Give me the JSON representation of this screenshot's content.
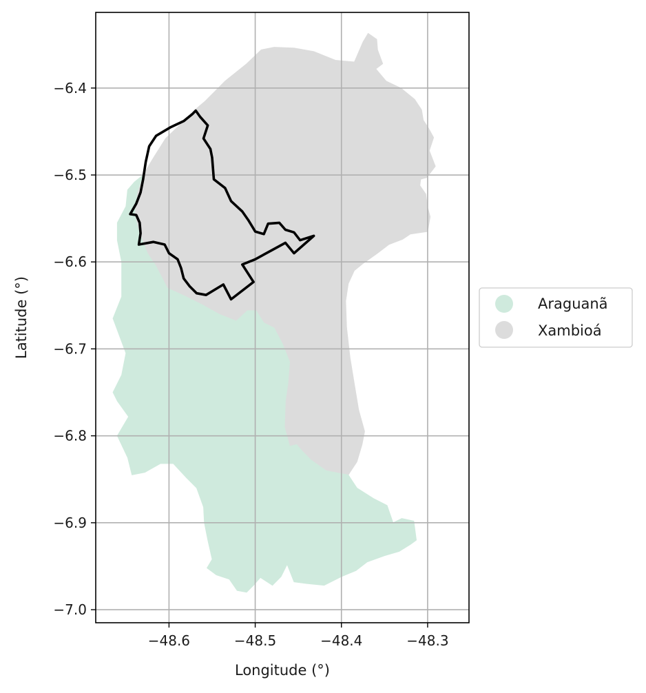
{
  "axes": {
    "xlabel": "Longitude (°)",
    "ylabel": "Latitude (°)",
    "xlim": [
      -48.685,
      -48.252
    ],
    "ylim": [
      -7.015,
      -6.313
    ],
    "xticks": [
      {
        "value": -48.6,
        "label": "−48.6"
      },
      {
        "value": -48.5,
        "label": "−48.5"
      },
      {
        "value": -48.4,
        "label": "−48.4"
      },
      {
        "value": -48.3,
        "label": "−48.3"
      }
    ],
    "yticks": [
      {
        "value": -6.4,
        "label": "−6.4"
      },
      {
        "value": -6.5,
        "label": "−6.5"
      },
      {
        "value": -6.6,
        "label": "−6.6"
      },
      {
        "value": -6.7,
        "label": "−6.7"
      },
      {
        "value": -6.8,
        "label": "−6.8"
      },
      {
        "value": -6.9,
        "label": "−6.9"
      },
      {
        "value": -7.0,
        "label": "−7.0"
      }
    ],
    "grid": true
  },
  "legend": {
    "placement": "right",
    "items": [
      {
        "label": "Araguanã",
        "color": "#cfeadd"
      },
      {
        "label": "Xambioá",
        "color": "#dcdcdc"
      }
    ]
  },
  "regions": [
    {
      "name": "Xambioá",
      "color": "#dcdcdc",
      "coords": [
        [
          -48.558,
          -6.415
        ],
        [
          -48.535,
          -6.392
        ],
        [
          -48.51,
          -6.372
        ],
        [
          -48.493,
          -6.356
        ],
        [
          -48.478,
          -6.353
        ],
        [
          -48.455,
          -6.354
        ],
        [
          -48.432,
          -6.358
        ],
        [
          -48.407,
          -6.368
        ],
        [
          -48.385,
          -6.37
        ],
        [
          -48.375,
          -6.347
        ],
        [
          -48.369,
          -6.337
        ],
        [
          -48.359,
          -6.344
        ],
        [
          -48.358,
          -6.356
        ],
        [
          -48.352,
          -6.372
        ],
        [
          -48.36,
          -6.378
        ],
        [
          -48.348,
          -6.392
        ],
        [
          -48.331,
          -6.4
        ],
        [
          -48.315,
          -6.413
        ],
        [
          -48.307,
          -6.425
        ],
        [
          -48.305,
          -6.437
        ],
        [
          -48.299,
          -6.446
        ],
        [
          -48.293,
          -6.457
        ],
        [
          -48.298,
          -6.472
        ],
        [
          -48.291,
          -6.49
        ],
        [
          -48.301,
          -6.503
        ],
        [
          -48.308,
          -6.505
        ],
        [
          -48.309,
          -6.512
        ],
        [
          -48.302,
          -6.522
        ],
        [
          -48.3,
          -6.537
        ],
        [
          -48.297,
          -6.548
        ],
        [
          -48.3,
          -6.565
        ],
        [
          -48.32,
          -6.568
        ],
        [
          -48.329,
          -6.574
        ],
        [
          -48.345,
          -6.58
        ],
        [
          -48.358,
          -6.59
        ],
        [
          -48.375,
          -6.602
        ],
        [
          -48.385,
          -6.61
        ],
        [
          -48.392,
          -6.625
        ],
        [
          -48.395,
          -6.645
        ],
        [
          -48.394,
          -6.675
        ],
        [
          -48.39,
          -6.71
        ],
        [
          -48.385,
          -6.74
        ],
        [
          -48.38,
          -6.77
        ],
        [
          -48.373,
          -6.795
        ],
        [
          -48.376,
          -6.81
        ],
        [
          -48.382,
          -6.83
        ],
        [
          -48.392,
          -6.845
        ],
        [
          -48.403,
          -6.843
        ],
        [
          -48.418,
          -6.84
        ],
        [
          -48.435,
          -6.828
        ],
        [
          -48.445,
          -6.818
        ],
        [
          -48.452,
          -6.81
        ],
        [
          -48.46,
          -6.812
        ],
        [
          -48.466,
          -6.79
        ],
        [
          -48.465,
          -6.76
        ],
        [
          -48.462,
          -6.74
        ],
        [
          -48.46,
          -6.715
        ],
        [
          -48.468,
          -6.695
        ],
        [
          -48.478,
          -6.676
        ],
        [
          -48.49,
          -6.67
        ],
        [
          -48.499,
          -6.656
        ],
        [
          -48.509,
          -6.656
        ],
        [
          -48.522,
          -6.668
        ],
        [
          -48.542,
          -6.66
        ],
        [
          -48.56,
          -6.65
        ],
        [
          -48.58,
          -6.64
        ],
        [
          -48.602,
          -6.63
        ],
        [
          -48.615,
          -6.605
        ],
        [
          -48.625,
          -6.59
        ],
        [
          -48.635,
          -6.565
        ],
        [
          -48.64,
          -6.545
        ],
        [
          -48.637,
          -6.52
        ],
        [
          -48.63,
          -6.5
        ],
        [
          -48.618,
          -6.48
        ],
        [
          -48.604,
          -6.458
        ],
        [
          -48.585,
          -6.44
        ],
        [
          -48.57,
          -6.425
        ],
        [
          -48.558,
          -6.415
        ]
      ]
    },
    {
      "name": "Araguanã",
      "color": "#cfeadd",
      "coords": [
        [
          -48.63,
          -6.5
        ],
        [
          -48.637,
          -6.52
        ],
        [
          -48.64,
          -6.545
        ],
        [
          -48.635,
          -6.565
        ],
        [
          -48.625,
          -6.59
        ],
        [
          -48.615,
          -6.605
        ],
        [
          -48.602,
          -6.63
        ],
        [
          -48.58,
          -6.64
        ],
        [
          -48.56,
          -6.65
        ],
        [
          -48.542,
          -6.66
        ],
        [
          -48.522,
          -6.668
        ],
        [
          -48.509,
          -6.656
        ],
        [
          -48.499,
          -6.656
        ],
        [
          -48.49,
          -6.67
        ],
        [
          -48.478,
          -6.676
        ],
        [
          -48.468,
          -6.695
        ],
        [
          -48.46,
          -6.715
        ],
        [
          -48.462,
          -6.74
        ],
        [
          -48.465,
          -6.76
        ],
        [
          -48.466,
          -6.79
        ],
        [
          -48.46,
          -6.812
        ],
        [
          -48.452,
          -6.81
        ],
        [
          -48.445,
          -6.818
        ],
        [
          -48.435,
          -6.828
        ],
        [
          -48.418,
          -6.84
        ],
        [
          -48.403,
          -6.843
        ],
        [
          -48.392,
          -6.845
        ],
        [
          -48.382,
          -6.86
        ],
        [
          -48.363,
          -6.872
        ],
        [
          -48.347,
          -6.88
        ],
        [
          -48.34,
          -6.9
        ],
        [
          -48.33,
          -6.895
        ],
        [
          -48.316,
          -6.898
        ],
        [
          -48.313,
          -6.92
        ],
        [
          -48.32,
          -6.925
        ],
        [
          -48.333,
          -6.933
        ],
        [
          -48.35,
          -6.938
        ],
        [
          -48.37,
          -6.945
        ],
        [
          -48.383,
          -6.955
        ],
        [
          -48.4,
          -6.962
        ],
        [
          -48.42,
          -6.972
        ],
        [
          -48.44,
          -6.97
        ],
        [
          -48.455,
          -6.968
        ],
        [
          -48.463,
          -6.948
        ],
        [
          -48.47,
          -6.962
        ],
        [
          -48.48,
          -6.972
        ],
        [
          -48.494,
          -6.963
        ],
        [
          -48.502,
          -6.972
        ],
        [
          -48.51,
          -6.98
        ],
        [
          -48.521,
          -6.978
        ],
        [
          -48.53,
          -6.965
        ],
        [
          -48.545,
          -6.96
        ],
        [
          -48.556,
          -6.952
        ],
        [
          -48.55,
          -6.942
        ],
        [
          -48.555,
          -6.92
        ],
        [
          -48.559,
          -6.9
        ],
        [
          -48.56,
          -6.882
        ],
        [
          -48.568,
          -6.86
        ],
        [
          -48.58,
          -6.848
        ],
        [
          -48.595,
          -6.832
        ],
        [
          -48.61,
          -6.832
        ],
        [
          -48.628,
          -6.842
        ],
        [
          -48.643,
          -6.845
        ],
        [
          -48.648,
          -6.825
        ],
        [
          -48.66,
          -6.8
        ],
        [
          -48.647,
          -6.778
        ],
        [
          -48.66,
          -6.76
        ],
        [
          -48.665,
          -6.75
        ],
        [
          -48.655,
          -6.73
        ],
        [
          -48.65,
          -6.705
        ],
        [
          -48.665,
          -6.665
        ],
        [
          -48.655,
          -6.64
        ],
        [
          -48.655,
          -6.6
        ],
        [
          -48.66,
          -6.575
        ],
        [
          -48.66,
          -6.555
        ],
        [
          -48.65,
          -6.536
        ],
        [
          -48.648,
          -6.517
        ],
        [
          -48.64,
          -6.508
        ],
        [
          -48.63,
          -6.5
        ]
      ]
    }
  ],
  "boundary": {
    "color": "#000000",
    "coords": [
      [
        -48.569,
        -6.426
      ],
      [
        -48.564,
        -6.433
      ],
      [
        -48.555,
        -6.443
      ],
      [
        -48.56,
        -6.458
      ],
      [
        -48.552,
        -6.47
      ],
      [
        -48.55,
        -6.48
      ],
      [
        -48.548,
        -6.505
      ],
      [
        -48.535,
        -6.515
      ],
      [
        -48.528,
        -6.53
      ],
      [
        -48.515,
        -6.542
      ],
      [
        -48.508,
        -6.552
      ],
      [
        -48.5,
        -6.565
      ],
      [
        -48.49,
        -6.568
      ],
      [
        -48.485,
        -6.556
      ],
      [
        -48.472,
        -6.555
      ],
      [
        -48.465,
        -6.563
      ],
      [
        -48.455,
        -6.566
      ],
      [
        -48.448,
        -6.575
      ],
      [
        -48.432,
        -6.57
      ],
      [
        -48.455,
        -6.59
      ],
      [
        -48.465,
        -6.578
      ],
      [
        -48.5,
        -6.597
      ],
      [
        -48.515,
        -6.603
      ],
      [
        -48.502,
        -6.623
      ],
      [
        -48.528,
        -6.643
      ],
      [
        -48.537,
        -6.626
      ],
      [
        -48.557,
        -6.638
      ],
      [
        -48.568,
        -6.636
      ],
      [
        -48.576,
        -6.628
      ],
      [
        -48.583,
        -6.619
      ],
      [
        -48.586,
        -6.607
      ],
      [
        -48.59,
        -6.597
      ],
      [
        -48.6,
        -6.59
      ],
      [
        -48.605,
        -6.58
      ],
      [
        -48.618,
        -6.577
      ],
      [
        -48.635,
        -6.58
      ],
      [
        -48.633,
        -6.567
      ],
      [
        -48.634,
        -6.555
      ],
      [
        -48.638,
        -6.546
      ],
      [
        -48.645,
        -6.545
      ],
      [
        -48.638,
        -6.533
      ],
      [
        -48.633,
        -6.52
      ],
      [
        -48.63,
        -6.505
      ],
      [
        -48.627,
        -6.485
      ],
      [
        -48.623,
        -6.467
      ],
      [
        -48.615,
        -6.455
      ],
      [
        -48.598,
        -6.445
      ],
      [
        -48.583,
        -6.438
      ],
      [
        -48.573,
        -6.43
      ],
      [
        -48.569,
        -6.426
      ]
    ]
  }
}
